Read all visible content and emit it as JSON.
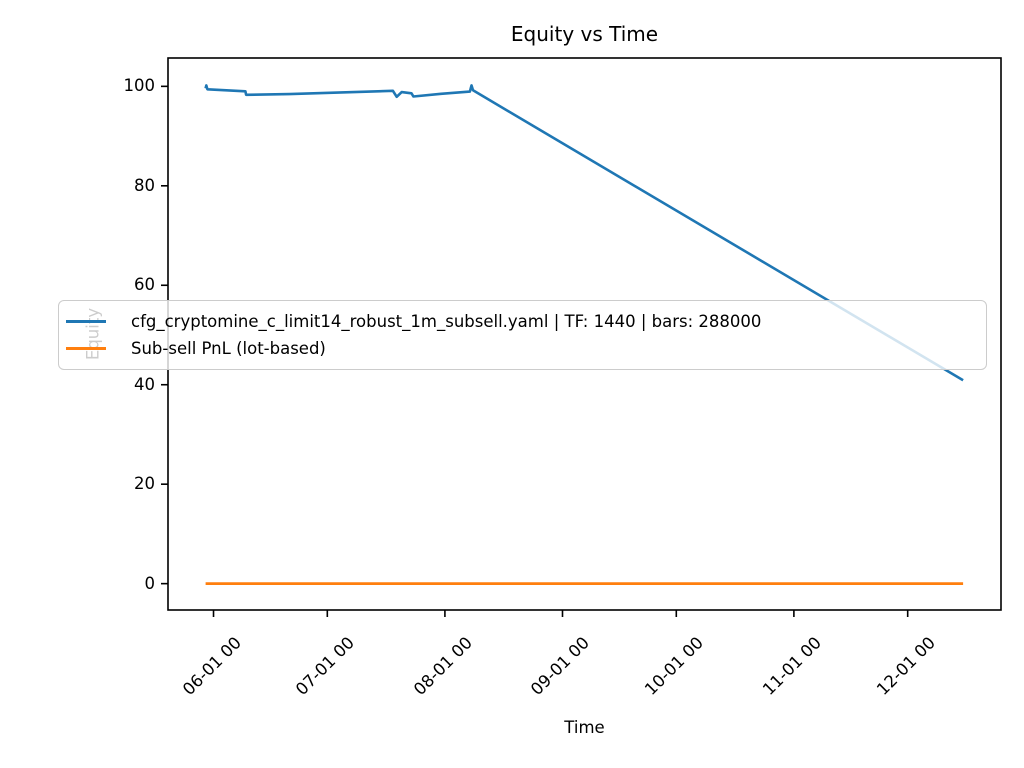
{
  "chart_data": {
    "type": "line",
    "title": "Equity vs Time",
    "xlabel": "Time",
    "ylabel": "Equity",
    "grid": false,
    "background": "#ffffff",
    "axis_color": "#000000",
    "legend_position": "center left",
    "x_unit": "days relative to 06-01 00:00",
    "xlim_days": [
      -12,
      207.6
    ],
    "ylim": [
      -5.3,
      105.7
    ],
    "x_ticks": [
      {
        "day": 0,
        "label": "06-01 00"
      },
      {
        "day": 30,
        "label": "07-01 00"
      },
      {
        "day": 61,
        "label": "08-01 00"
      },
      {
        "day": 92,
        "label": "09-01 00"
      },
      {
        "day": 122,
        "label": "10-01 00"
      },
      {
        "day": 153,
        "label": "11-01 00"
      },
      {
        "day": 183,
        "label": "12-01 00"
      }
    ],
    "y_ticks": [
      0,
      20,
      40,
      60,
      80,
      100
    ],
    "series": [
      {
        "name": "cfg_cryptomine_c_limit14_robust_1m_subsell.yaml | TF: 1440 | bars: 288000",
        "color": "#1f77b4",
        "line_width": 2.6,
        "points": [
          [
            -2.1,
            99.6
          ],
          [
            -1.9,
            100.2
          ],
          [
            -1.6,
            99.4
          ],
          [
            8.4,
            99.0
          ],
          [
            8.6,
            98.3
          ],
          [
            20,
            98.45
          ],
          [
            47.3,
            99.1
          ],
          [
            48.3,
            97.9
          ],
          [
            49.6,
            98.85
          ],
          [
            52.2,
            98.6
          ],
          [
            52.7,
            97.95
          ],
          [
            60,
            98.5
          ],
          [
            67.6,
            98.95
          ],
          [
            68.0,
            100.2
          ],
          [
            68.4,
            99.2
          ],
          [
            197.6,
            40.9
          ]
        ]
      },
      {
        "name": "Sub-sell PnL (lot-based)",
        "color": "#ff7f0e",
        "line_width": 2.8,
        "points": [
          [
            -2.1,
            0.0
          ],
          [
            197.6,
            0.0
          ]
        ]
      }
    ]
  }
}
